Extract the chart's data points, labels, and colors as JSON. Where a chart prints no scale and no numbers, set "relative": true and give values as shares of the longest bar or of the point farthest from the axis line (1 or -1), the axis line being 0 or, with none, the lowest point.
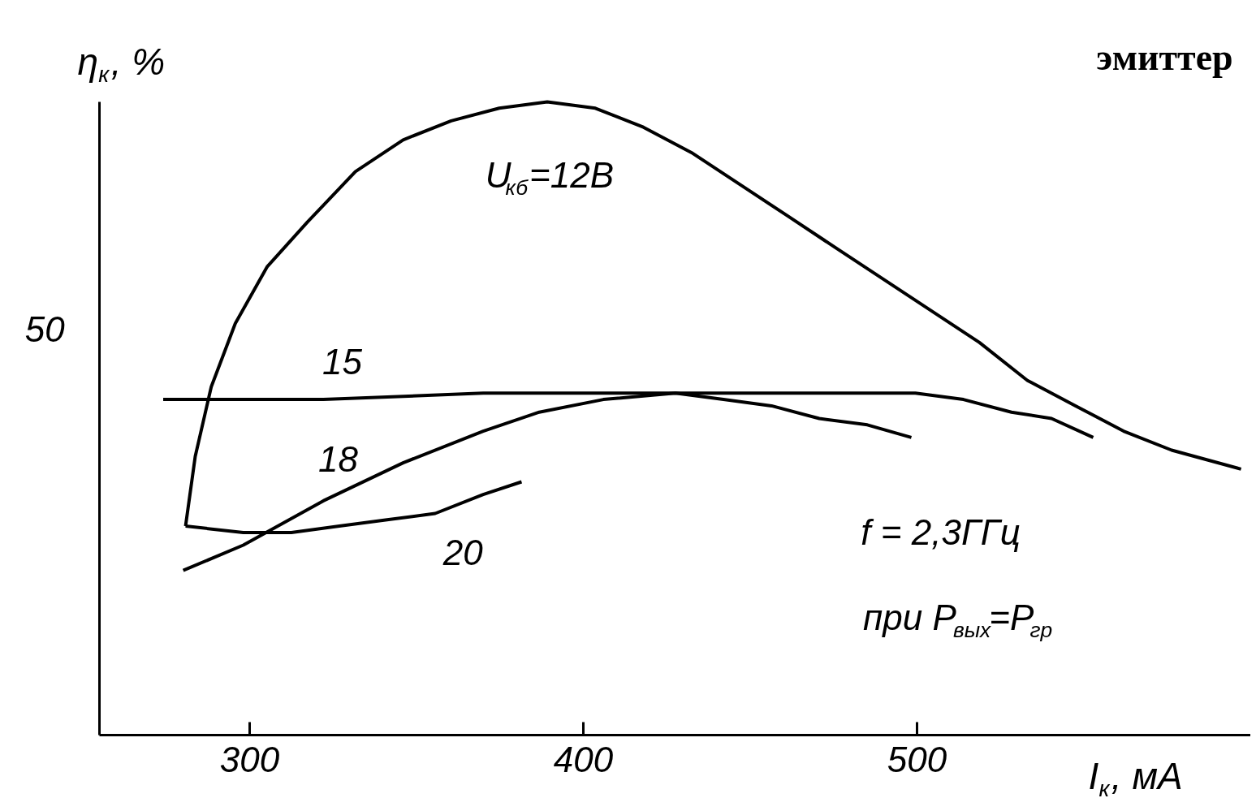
{
  "chart_data": {
    "type": "line",
    "title": "эмиттер",
    "relative": true,
    "xlabel": "I$_{к}$, мА",
    "ylabel": "η$_{к}$, %",
    "xlim": [
      255,
      600
    ],
    "xticks": [
      300,
      400,
      500
    ],
    "grid": false,
    "series": [
      {
        "color": "#000000",
        "x": [
          280.8,
          283.7,
          288.5,
          295.7,
          305.3,
          317.3,
          331.7,
          346.0,
          360.4,
          374.8,
          389.2,
          403.6,
          418.0,
          432.4,
          446.8,
          461.2,
          475.5,
          489.9,
          504.3,
          518.7,
          533.1,
          547.5,
          561.9,
          576.3,
          597.1
        ],
        "values": [
          0.33,
          0.44,
          0.55,
          0.65,
          0.74,
          0.81,
          0.89,
          0.94,
          0.97,
          0.99,
          1.0,
          0.99,
          0.96,
          0.92,
          0.87,
          0.82,
          0.77,
          0.72,
          0.67,
          0.62,
          0.56,
          0.52,
          0.48,
          0.45,
          0.42
        ]
      },
      {
        "color": "#000000",
        "x": [
          274.1,
          322.1,
          370.0,
          418.0,
          466.0,
          499.5,
          513.9,
          528.3,
          540.3,
          552.8
        ],
        "values": [
          0.53,
          0.53,
          0.54,
          0.54,
          0.54,
          0.54,
          0.53,
          0.51,
          0.5,
          0.47
        ]
      },
      {
        "color": "#000000",
        "x": [
          280.1,
          298.1,
          322.1,
          346.0,
          370.0,
          386.8,
          406.0,
          427.6,
          442.0,
          456.4,
          470.7,
          485.1,
          498.3
        ],
        "values": [
          0.26,
          0.3,
          0.37,
          0.43,
          0.48,
          0.51,
          0.53,
          0.54,
          0.53,
          0.52,
          0.5,
          0.49,
          0.47
        ]
      },
      {
        "color": "#000000",
        "x": [
          280.8,
          298.1,
          312.5,
          326.9,
          341.2,
          355.6,
          370.0,
          381.5
        ],
        "values": [
          0.33,
          0.32,
          0.32,
          0.33,
          0.34,
          0.35,
          0.38,
          0.4
        ]
      }
    ],
    "annotations": [
      "U$_{кб}$=12В",
      "15",
      "18",
      "20",
      "50",
      "f = 2,3ГГц",
      "при P$_{вых}$=P$_{гр}$"
    ]
  }
}
